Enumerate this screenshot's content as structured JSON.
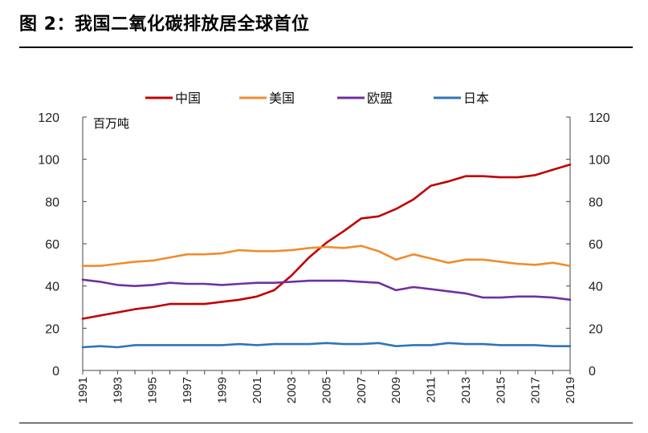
{
  "figure": {
    "title": "图 2：我国二氧化碳排放居全球首位"
  },
  "chart_data": {
    "type": "line",
    "title": "",
    "unit_label": "百万吨",
    "xlabel": "",
    "ylabel": "",
    "ylim": [
      0,
      120
    ],
    "yticks": [
      0,
      20,
      40,
      60,
      80,
      100,
      120
    ],
    "xtick_labels": [
      "1991",
      "1993",
      "1995",
      "1997",
      "1999",
      "2001",
      "2003",
      "2005",
      "2007",
      "2009",
      "2011",
      "2013",
      "2015",
      "2017",
      "2019"
    ],
    "x": [
      1991,
      1992,
      1993,
      1994,
      1995,
      1996,
      1997,
      1998,
      1999,
      2000,
      2001,
      2002,
      2003,
      2004,
      2005,
      2006,
      2007,
      2008,
      2009,
      2010,
      2011,
      2012,
      2013,
      2014,
      2015,
      2016,
      2017,
      2018,
      2019
    ],
    "legend_position": "top",
    "grid": false,
    "secondary_y_axis": true,
    "series": [
      {
        "name": "中国",
        "color": "#c00000",
        "values": [
          24.5,
          26,
          27.5,
          29,
          30,
          31.5,
          31.5,
          31.5,
          32.5,
          33.5,
          35,
          38,
          45,
          53.5,
          60.5,
          66,
          72,
          73,
          76.5,
          81,
          87.5,
          89.5,
          92,
          92,
          91.5,
          91.5,
          92.5,
          95,
          97.5
        ]
      },
      {
        "name": "美国",
        "color": "#f08c2e",
        "values": [
          49.5,
          49.5,
          50.5,
          51.5,
          52,
          53.5,
          55,
          55,
          55.5,
          57,
          56.5,
          56.5,
          57,
          58,
          58.5,
          58,
          59,
          56.5,
          52.5,
          55,
          53,
          51,
          52.5,
          52.5,
          51.5,
          50.5,
          50,
          51,
          49.5
        ]
      },
      {
        "name": "欧盟",
        "color": "#7030a0",
        "values": [
          43,
          42,
          40.5,
          40,
          40.5,
          41.5,
          41,
          41,
          40.5,
          41,
          41.5,
          41.5,
          42,
          42.5,
          42.5,
          42.5,
          42,
          41.5,
          38,
          39.5,
          38.5,
          37.5,
          36.5,
          34.5,
          34.5,
          35,
          35,
          34.5,
          33.5
        ]
      },
      {
        "name": "日本",
        "color": "#2e75b6",
        "values": [
          11,
          11.5,
          11,
          12,
          12,
          12,
          12,
          12,
          12,
          12.5,
          12,
          12.5,
          12.5,
          12.5,
          13,
          12.5,
          12.5,
          13,
          11.5,
          12,
          12,
          13,
          12.5,
          12.5,
          12,
          12,
          12,
          11.5,
          11.5
        ]
      }
    ]
  }
}
